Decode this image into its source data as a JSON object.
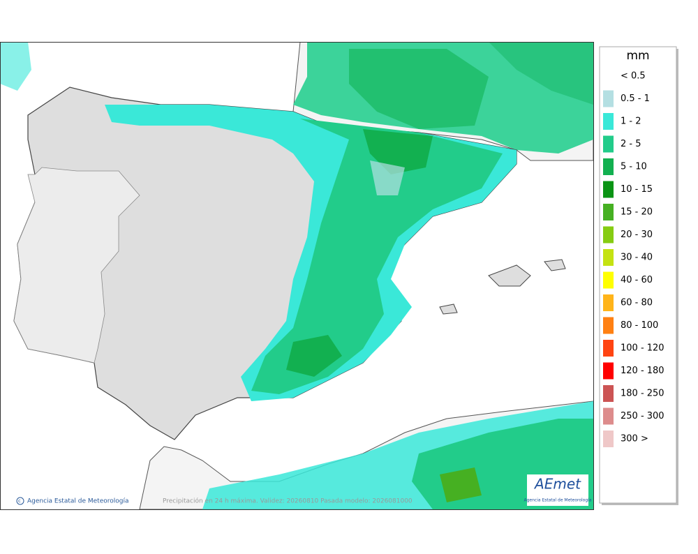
{
  "legend": {
    "title": "mm",
    "items": [
      {
        "label": "< 0.5"
      },
      {
        "label": "0.5 - 1",
        "color": "#b4dfe2"
      },
      {
        "label": "1 - 2",
        "color": "#3ae8d8"
      },
      {
        "label": "2 - 5",
        "color": "#22cc8a"
      },
      {
        "label": "5 - 10",
        "color": "#12b050"
      },
      {
        "label": "10 - 15",
        "color": "#0a9414"
      },
      {
        "label": "15 - 20",
        "color": "#46b022"
      },
      {
        "label": "20 - 30",
        "color": "#86cc12"
      },
      {
        "label": "30 - 40",
        "color": "#c4e212"
      },
      {
        "label": "40 - 60",
        "color": "#ffff00"
      },
      {
        "label": "60 - 80",
        "color": "#ffb41a"
      },
      {
        "label": "80 - 100",
        "color": "#ff8012"
      },
      {
        "label": "100 - 120",
        "color": "#ff4412"
      },
      {
        "label": "120 - 180",
        "color": "#ff0000"
      },
      {
        "label": "180 - 250",
        "color": "#cc5454"
      },
      {
        "label": "250 - 300",
        "color": "#dd8c8c"
      },
      {
        "label": "300 >",
        "color": "#efc8c8"
      }
    ]
  },
  "footer": {
    "credit": "Agencia Estatal de Meteorología",
    "caption": "Precipitación en 24 h máxima. Validez: 20260810 Pasada modelo: 2026081000"
  },
  "logo": {
    "name": "AEmet",
    "subtitle": "Agencia Estatal de Meteorología"
  }
}
